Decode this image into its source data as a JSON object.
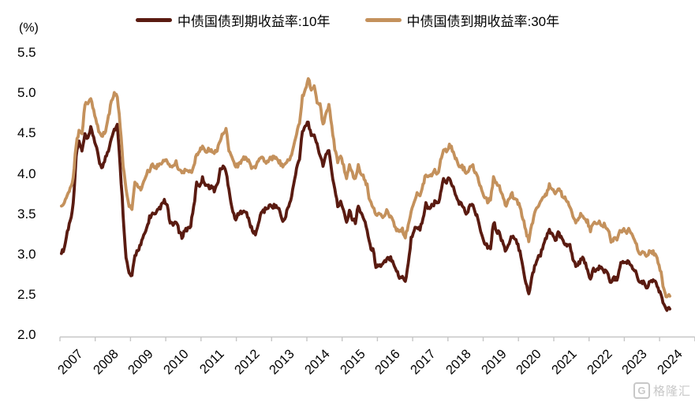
{
  "watermark": {
    "logo_letter": "G",
    "text": "格隆汇"
  },
  "chart_data": {
    "type": "line",
    "title": "",
    "unit_label": "(%)",
    "grid": false,
    "legend_position": "top-center",
    "x_start_year": 2007,
    "points_per_year": 12,
    "x_tick_labels": [
      "2007",
      "2008",
      "2009",
      "2010",
      "2011",
      "2012",
      "2013",
      "2014",
      "2015",
      "2016",
      "2017",
      "2018",
      "2019",
      "2020",
      "2021",
      "2022",
      "2023",
      "2024"
    ],
    "y_ticks": [
      "5.5",
      "5.0",
      "4.5",
      "4.0",
      "3.5",
      "3.0",
      "2.5",
      "2.0"
    ],
    "ylim": [
      2.0,
      5.5
    ],
    "axis_color": "#c6c6c6",
    "series": [
      {
        "name": "中债国债到期收益率:10年",
        "color": "#5a1b11",
        "values": [
          3.01,
          3.08,
          3.28,
          3.42,
          3.62,
          4.22,
          4.4,
          4.28,
          4.48,
          4.42,
          4.56,
          4.46,
          4.3,
          4.14,
          4.08,
          4.2,
          4.3,
          4.46,
          4.55,
          4.6,
          4.1,
          3.5,
          2.95,
          2.76,
          2.72,
          2.98,
          3.06,
          3.12,
          3.22,
          3.32,
          3.46,
          3.5,
          3.48,
          3.56,
          3.6,
          3.66,
          3.6,
          3.38,
          3.36,
          3.42,
          3.28,
          3.22,
          3.3,
          3.32,
          3.36,
          3.58,
          3.88,
          3.86,
          3.94,
          3.88,
          3.84,
          3.84,
          3.8,
          3.86,
          4.04,
          4.1,
          4.02,
          3.82,
          3.58,
          3.44,
          3.48,
          3.52,
          3.56,
          3.5,
          3.4,
          3.28,
          3.26,
          3.36,
          3.54,
          3.54,
          3.58,
          3.6,
          3.6,
          3.6,
          3.56,
          3.44,
          3.42,
          3.58,
          3.66,
          3.86,
          4.06,
          4.2,
          4.54,
          4.6,
          4.65,
          4.45,
          4.5,
          4.35,
          4.25,
          4.08,
          4.25,
          4.3,
          4.02,
          3.8,
          3.6,
          3.64,
          3.56,
          3.4,
          3.55,
          3.45,
          3.4,
          3.6,
          3.5,
          3.45,
          3.3,
          3.1,
          3.05,
          2.86,
          2.86,
          2.86,
          2.9,
          2.94,
          2.96,
          2.9,
          2.8,
          2.7,
          2.74,
          2.66,
          2.88,
          3.2,
          3.3,
          3.35,
          3.3,
          3.46,
          3.62,
          3.56,
          3.6,
          3.64,
          3.62,
          3.74,
          3.94,
          3.9,
          3.95,
          3.86,
          3.74,
          3.66,
          3.62,
          3.56,
          3.5,
          3.6,
          3.62,
          3.5,
          3.4,
          3.26,
          3.15,
          3.1,
          3.08,
          3.4,
          3.3,
          3.26,
          3.16,
          3.05,
          3.1,
          3.2,
          3.2,
          3.14,
          3.04,
          2.86,
          2.64,
          2.5,
          2.7,
          2.86,
          2.96,
          3.0,
          3.12,
          3.2,
          3.3,
          3.26,
          3.16,
          3.26,
          3.2,
          3.16,
          3.1,
          3.1,
          2.94,
          2.86,
          2.88,
          2.96,
          2.9,
          2.8,
          2.7,
          2.8,
          2.8,
          2.84,
          2.8,
          2.8,
          2.76,
          2.64,
          2.7,
          2.68,
          2.86,
          2.9,
          2.9,
          2.9,
          2.86,
          2.8,
          2.72,
          2.65,
          2.65,
          2.56,
          2.65,
          2.68,
          2.66,
          2.58,
          2.48,
          2.38,
          2.3,
          2.32
        ]
      },
      {
        "name": "中债国债到期收益率:30年",
        "color": "#c4915c",
        "values": [
          3.6,
          3.62,
          3.74,
          3.8,
          3.96,
          4.35,
          4.55,
          4.48,
          4.85,
          4.88,
          4.94,
          4.8,
          4.62,
          4.5,
          4.46,
          4.55,
          4.7,
          4.9,
          5.0,
          4.98,
          4.6,
          4.1,
          3.8,
          3.58,
          3.58,
          3.88,
          3.84,
          3.8,
          3.9,
          4.0,
          4.05,
          4.1,
          4.08,
          4.1,
          4.14,
          4.18,
          4.14,
          4.08,
          4.1,
          4.14,
          4.04,
          4.0,
          4.04,
          4.04,
          4.0,
          4.08,
          4.24,
          4.3,
          4.32,
          4.28,
          4.3,
          4.3,
          4.26,
          4.3,
          4.4,
          4.5,
          4.55,
          4.3,
          4.2,
          4.1,
          4.1,
          4.14,
          4.2,
          4.2,
          4.14,
          4.06,
          4.1,
          4.14,
          4.2,
          4.16,
          4.14,
          4.2,
          4.2,
          4.2,
          4.16,
          4.1,
          4.1,
          4.16,
          4.2,
          4.36,
          4.5,
          4.64,
          4.95,
          5.05,
          5.18,
          5.05,
          5.1,
          4.9,
          4.85,
          4.62,
          4.75,
          4.85,
          4.6,
          4.3,
          4.15,
          4.2,
          4.1,
          3.95,
          4.1,
          4.0,
          3.95,
          4.1,
          4.0,
          3.95,
          3.85,
          3.65,
          3.6,
          3.5,
          3.5,
          3.46,
          3.5,
          3.55,
          3.46,
          3.4,
          3.3,
          3.26,
          3.3,
          3.22,
          3.36,
          3.55,
          3.66,
          3.76,
          3.7,
          3.86,
          4.0,
          3.95,
          4.0,
          4.06,
          4.0,
          4.15,
          4.3,
          4.3,
          4.35,
          4.3,
          4.2,
          4.1,
          4.1,
          4.06,
          4.0,
          4.1,
          4.1,
          4.0,
          3.9,
          3.8,
          3.7,
          3.66,
          3.7,
          3.94,
          3.9,
          3.85,
          3.75,
          3.6,
          3.66,
          3.76,
          3.7,
          3.66,
          3.6,
          3.44,
          3.3,
          3.16,
          3.36,
          3.5,
          3.6,
          3.66,
          3.7,
          3.76,
          3.86,
          3.8,
          3.76,
          3.8,
          3.76,
          3.7,
          3.66,
          3.6,
          3.46,
          3.4,
          3.46,
          3.5,
          3.46,
          3.4,
          3.3,
          3.4,
          3.4,
          3.4,
          3.36,
          3.36,
          3.3,
          3.16,
          3.2,
          3.16,
          3.3,
          3.3,
          3.28,
          3.3,
          3.25,
          3.18,
          3.08,
          3.0,
          3.02,
          2.97,
          3.02,
          3.03,
          3.0,
          2.9,
          2.76,
          2.56,
          2.46,
          2.48
        ]
      }
    ]
  }
}
